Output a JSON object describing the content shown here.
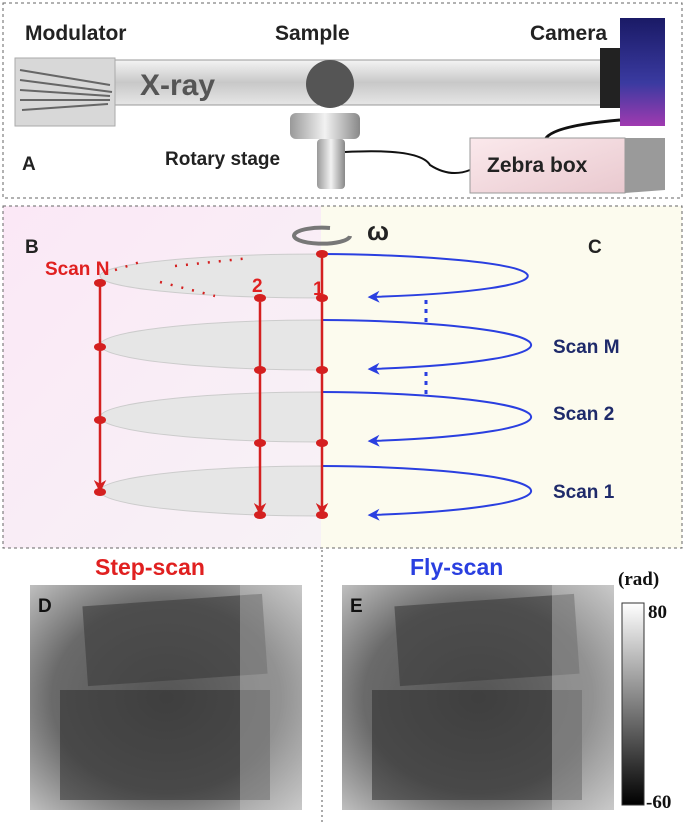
{
  "panel_a": {
    "label": "A",
    "modulator": "Modulator",
    "sample": "Sample",
    "camera": "Camera",
    "beam": "X-ray",
    "stage": "Rotary stage",
    "zebra_box": "Zebra box"
  },
  "panel_bc": {
    "rotation": "ω",
    "label_b": "B",
    "label_c": "C",
    "step_labels": [
      "Scan N",
      "2",
      "1"
    ],
    "fly_labels": [
      "Scan M",
      "Scan 2",
      "Scan 1"
    ]
  },
  "panel_de": {
    "titles": [
      "Step-scan",
      "Fly-scan"
    ],
    "labels": [
      "D",
      "E"
    ],
    "colorbar": {
      "unit": "(rad)",
      "max": 80,
      "min": -60
    }
  }
}
